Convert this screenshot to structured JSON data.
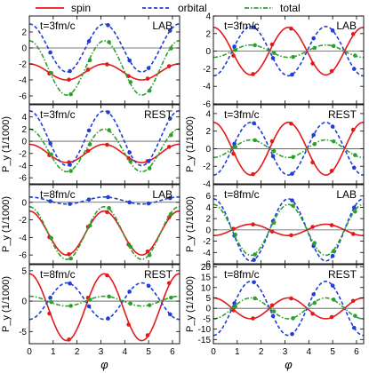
{
  "legend": {
    "items": [
      {
        "label": "spin",
        "color": "#e31a1c",
        "dash": "solid"
      },
      {
        "label": "orbital",
        "color": "#1f3fd6",
        "dash": "dash"
      },
      {
        "label": "total",
        "color": "#2ca02c",
        "dash": "dashdot"
      }
    ]
  },
  "chart_data": [
    {
      "type": "line",
      "panel": "row1-left",
      "ylabel": "",
      "xlabel": "",
      "annotation_time": "t=3fm/c",
      "annotation_frame": "LAB",
      "ylim": [
        -7,
        4
      ],
      "yticks": [
        -6,
        -4,
        -2,
        0,
        2
      ],
      "xlim": [
        0,
        6.3
      ],
      "xticks": [
        0,
        1,
        2,
        3,
        4,
        5,
        6
      ],
      "show_xticklabels": false,
      "series": [
        {
          "name": "spin",
          "A0": -3.0,
          "A": 1.0
        },
        {
          "name": "orbital",
          "A0": 0.0,
          "A": 3.0
        },
        {
          "name": "total",
          "A0": -2.5,
          "A": 3.4
        }
      ]
    },
    {
      "type": "line",
      "panel": "row1-right",
      "ylabel": "",
      "xlabel": "",
      "annotation_time": "t=3fm/c",
      "annotation_frame": "LAB",
      "ylim": [
        -6,
        4
      ],
      "yticks": [
        -6,
        -4,
        -2,
        0,
        2,
        4
      ],
      "xlim": [
        0,
        6.3
      ],
      "xticks": [
        0,
        1,
        2,
        3,
        4,
        5,
        6
      ],
      "show_xticklabels": false,
      "series": [
        {
          "name": "spin",
          "A0": 0.0,
          "A": 2.7
        },
        {
          "name": "orbital",
          "A0": 0.0,
          "A": -2.8
        },
        {
          "name": "total",
          "A0": 0.0,
          "A": -0.7
        }
      ]
    },
    {
      "type": "line",
      "panel": "row2-left",
      "ylabel": "P_y (1/1000)",
      "xlabel": "",
      "annotation_time": "t=3fm/c",
      "annotation_frame": "REST",
      "ylim": [
        -7,
        6
      ],
      "yticks": [
        -6,
        -4,
        -2,
        0,
        2,
        4
      ],
      "xlim": [
        0,
        6.3
      ],
      "xticks": [
        0,
        1,
        2,
        3,
        4,
        5,
        6
      ],
      "show_xticklabels": false,
      "series": [
        {
          "name": "spin",
          "A0": -2.0,
          "A": 1.5
        },
        {
          "name": "orbital",
          "A0": 0.5,
          "A": 4.5
        },
        {
          "name": "total",
          "A0": -1.5,
          "A": 3.5
        }
      ]
    },
    {
      "type": "line",
      "panel": "row2-right",
      "ylabel": "P_y (1/1000)",
      "xlabel": "",
      "annotation_time": "t=3fm/c",
      "annotation_frame": "REST",
      "ylim": [
        -4,
        5
      ],
      "yticks": [
        -4,
        -2,
        0,
        2,
        4
      ],
      "xlim": [
        0,
        6.3
      ],
      "xticks": [
        0,
        1,
        2,
        3,
        4,
        5,
        6
      ],
      "show_xticklabels": false,
      "series": [
        {
          "name": "spin",
          "A0": 0.0,
          "A": 3.0
        },
        {
          "name": "orbital",
          "A0": 0.0,
          "A": -3.0
        },
        {
          "name": "total",
          "A0": 0.0,
          "A": -1.0
        }
      ]
    },
    {
      "type": "line",
      "panel": "row3-left",
      "ylabel": "P_y (1/1000)",
      "xlabel": "",
      "annotation_time": "t=8fm/c",
      "annotation_frame": "LAB",
      "ylim": [
        -7,
        2
      ],
      "yticks": [
        -6,
        -4,
        -2,
        0
      ],
      "xlim": [
        0,
        6.3
      ],
      "xticks": [
        0,
        1,
        2,
        3,
        4,
        5,
        6
      ],
      "show_xticklabels": false,
      "series": [
        {
          "name": "spin",
          "A0": -3.5,
          "A": 2.5
        },
        {
          "name": "orbital",
          "A0": 0.2,
          "A": 0.4
        },
        {
          "name": "total",
          "A0": -3.5,
          "A": 3.0
        }
      ]
    },
    {
      "type": "line",
      "panel": "row3-right",
      "ylabel": "P_y (1/1000)",
      "xlabel": "",
      "annotation_time": "t=8fm/c",
      "annotation_frame": "LAB",
      "ylim": [
        -6,
        8
      ],
      "yticks": [
        -6,
        -4,
        -2,
        0,
        2,
        4,
        6
      ],
      "xlim": [
        0,
        6.3
      ],
      "xticks": [
        0,
        1,
        2,
        3,
        4,
        5,
        6
      ],
      "show_xticklabels": false,
      "series": [
        {
          "name": "spin",
          "A0": 0.0,
          "A": -1.0
        },
        {
          "name": "orbital",
          "A0": 0.0,
          "A": 5.5
        },
        {
          "name": "total",
          "A0": 0.0,
          "A": 4.5
        }
      ]
    },
    {
      "type": "line",
      "panel": "row4-left",
      "ylabel": "P_y (1/1000)",
      "xlabel": "φ",
      "annotation_time": "t=8fm/c",
      "annotation_frame": "REST",
      "ylim": [
        -7,
        6
      ],
      "yticks": [
        -5,
        0,
        5
      ],
      "xlim": [
        0,
        6.3
      ],
      "xticks": [
        0,
        1,
        2,
        3,
        4,
        5,
        6
      ],
      "show_xticklabels": true,
      "series": [
        {
          "name": "spin",
          "A0": -1.0,
          "A": 5.5
        },
        {
          "name": "orbital",
          "A0": 0.0,
          "A": -3.0
        },
        {
          "name": "total",
          "A0": 0.0,
          "A": 0.8
        }
      ]
    },
    {
      "type": "line",
      "panel": "row4-right",
      "ylabel": "P_y (1/1000)",
      "xlabel": "φ",
      "annotation_time": "t=8fm/c",
      "annotation_frame": "REST",
      "ylim": [
        -17,
        21
      ],
      "yticks": [
        -15,
        -10,
        -5,
        0,
        5,
        10,
        15,
        20
      ],
      "xlim": [
        0,
        6.3
      ],
      "xticks": [
        0,
        1,
        2,
        3,
        4,
        5,
        6
      ],
      "show_xticklabels": true,
      "series": [
        {
          "name": "spin",
          "A0": 0.0,
          "A": 5.0
        },
        {
          "name": "orbital",
          "A0": 0.0,
          "A": -13.0
        },
        {
          "name": "total",
          "A0": 0.0,
          "A": -5.0
        }
      ]
    }
  ]
}
